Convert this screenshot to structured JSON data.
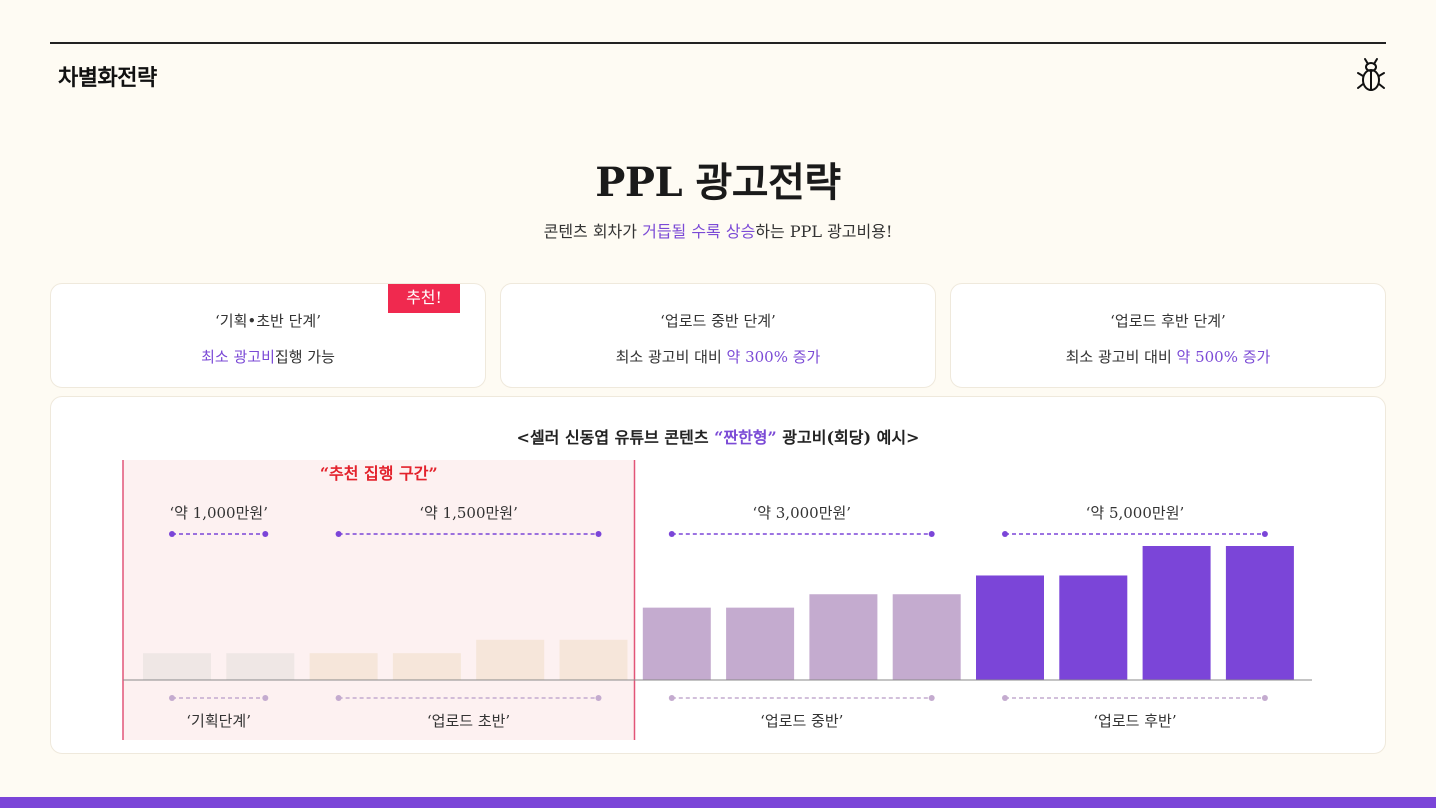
{
  "header": {
    "title": "차별화전략",
    "logo_icon": "beetle-icon"
  },
  "main": {
    "title": "PPL 광고전략",
    "subtitle": {
      "before": "콘텐츠 회차가 ",
      "highlight": "거듭될 수록 상승",
      "after": "하는 PPL 광고비용!"
    }
  },
  "cards": [
    {
      "title": "‘기획•초반 단계’",
      "desc_highlight": "최소 광고비",
      "desc_after": "집행 가능",
      "badge": "추천!"
    },
    {
      "title": "‘업로드 중반 단계’",
      "desc_before": "최소 광고비 대비 ",
      "desc_highlight": "약 300% 증가"
    },
    {
      "title": "‘업로드 후반 단계’",
      "desc_before": "최소 광고비 대비 ",
      "desc_highlight": "약 500% 증가"
    }
  ],
  "chart_title": {
    "before": "<셀러 신동엽 유튜브 콘텐츠 ",
    "highlight": "“짠한형”",
    "after": " 광고비(회당) 예시>"
  },
  "chart_data": {
    "type": "bar",
    "recommended_zone_label": "“추천 집행 구간”",
    "values": [
      1,
      1,
      1,
      1,
      1.5,
      1.5,
      2.7,
      2.7,
      3.2,
      3.2,
      3.9,
      3.9,
      5.0,
      5.0
    ],
    "bar_colors": [
      "#efe7e5",
      "#efe7e5",
      "#f6e6da",
      "#f6e6da",
      "#f6e6da",
      "#f6e6da",
      "#c4abcf",
      "#c4abcf",
      "#c4abcf",
      "#c4abcf",
      "#7b45d8",
      "#7b45d8",
      "#7b45d8",
      "#7b45d8"
    ],
    "ylim": [
      0,
      5.0
    ],
    "price_labels": [
      {
        "label": "‘약 1,000만원’",
        "from": 0,
        "to": 1
      },
      {
        "label": "‘약 1,500만원’",
        "from": 2,
        "to": 5
      },
      {
        "label": "‘약 3,000만원’",
        "from": 6,
        "to": 9
      },
      {
        "label": "‘약 5,000만원’",
        "from": 10,
        "to": 13
      }
    ],
    "stage_labels": [
      {
        "label": "‘기획단계’",
        "from": 0,
        "to": 1
      },
      {
        "label": "‘업로드 초반’",
        "from": 2,
        "to": 5
      },
      {
        "label": "‘업로드 중반’",
        "from": 6,
        "to": 9
      },
      {
        "label": "‘업로드 후반’",
        "from": 10,
        "to": 13
      }
    ],
    "recommended_range": [
      0,
      5
    ]
  },
  "colors": {
    "accent": "#7b45d8",
    "badge": "#f0294f",
    "zone_border": "#e25578",
    "zone_fill": "#fdf1f1",
    "zone_label": "#e3222c",
    "dashed_price": "#7b45d8",
    "dashed_stage": "#c4abcf"
  }
}
